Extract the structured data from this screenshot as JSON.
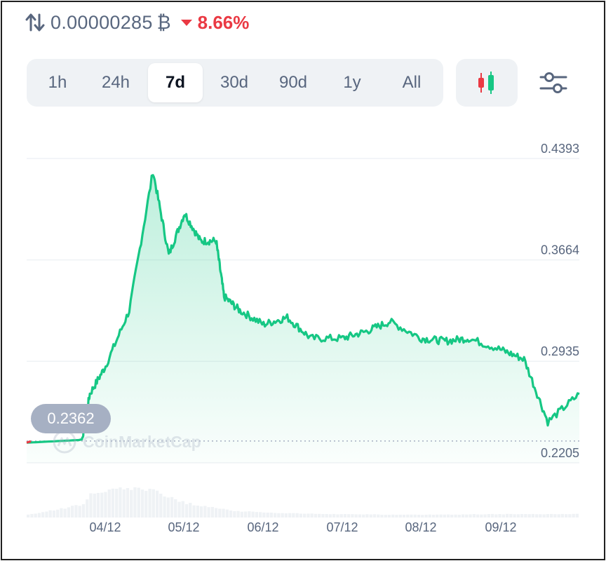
{
  "header": {
    "swap_icon": "swap-vertical-arrows-icon",
    "price": "0.00000285",
    "currency": "₿",
    "change_direction": "down",
    "change": "8.66%",
    "change_color": "#ea3943"
  },
  "range_tabs": [
    {
      "label": "1h",
      "active": false
    },
    {
      "label": "24h",
      "active": false
    },
    {
      "label": "7d",
      "active": true
    },
    {
      "label": "30d",
      "active": false
    },
    {
      "label": "90d",
      "active": false
    },
    {
      "label": "1y",
      "active": false
    },
    {
      "label": "All",
      "active": false
    }
  ],
  "toolbar": {
    "candle_icon": "candlestick-chart-icon",
    "settings_icon": "sliders-settings-icon"
  },
  "start_label": "0.2362",
  "watermark": "CoinMarketCap",
  "chart_data": {
    "type": "area",
    "ylim": [
      0.2205,
      0.4393
    ],
    "yticks": [
      "0.4393",
      "0.3664",
      "0.2935",
      "0.2205"
    ],
    "x_ticks": [
      "04/12",
      "05/12",
      "06/12",
      "07/12",
      "08/12",
      "09/12"
    ],
    "baseline": 0.2362,
    "line_color": "#16c784",
    "x": [
      0.0,
      0.7,
      0.8,
      1.0,
      1.3,
      1.6,
      1.8,
      2.0,
      2.2,
      2.4,
      2.5,
      2.7,
      3.0,
      3.3,
      3.6,
      4.0,
      4.3,
      4.6,
      5.0,
      5.3,
      5.6,
      6.0,
      6.3,
      6.6,
      7.0
    ],
    "values": [
      0.235,
      0.237,
      0.27,
      0.29,
      0.33,
      0.43,
      0.37,
      0.4,
      0.38,
      0.38,
      0.34,
      0.33,
      0.32,
      0.325,
      0.31,
      0.31,
      0.315,
      0.322,
      0.31,
      0.308,
      0.31,
      0.302,
      0.295,
      0.25,
      0.27
    ],
    "volume": [
      0.1,
      0.45,
      0.8,
      0.95,
      1.0,
      0.92,
      0.72,
      0.52,
      0.4,
      0.34,
      0.28,
      0.22,
      0.18,
      0.15,
      0.13,
      0.12,
      0.11,
      0.1,
      0.1,
      0.1,
      0.11,
      0.12,
      0.12,
      0.12,
      0.12
    ],
    "volume_color": "#eff2f5"
  }
}
